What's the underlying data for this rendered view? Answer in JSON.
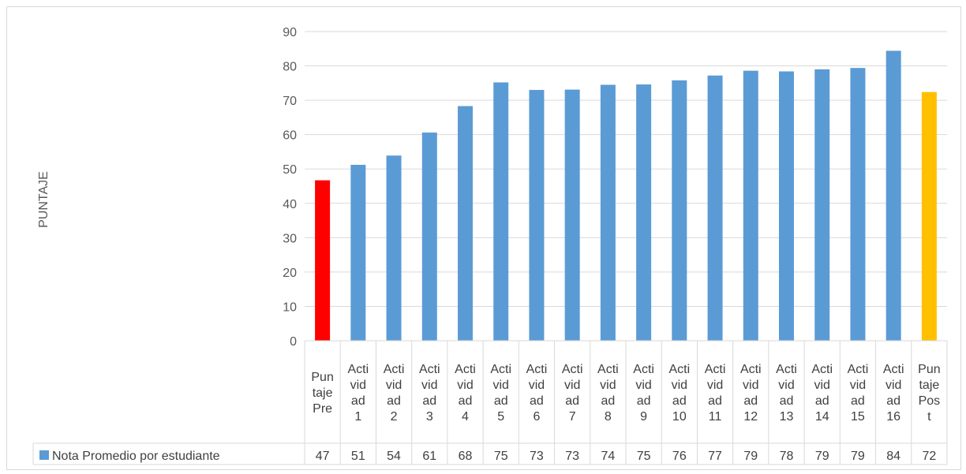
{
  "chart_data": {
    "type": "bar",
    "ylabel": "PUNTAJE",
    "ylim": [
      0,
      90
    ],
    "yticks": [
      0,
      10,
      20,
      30,
      40,
      50,
      60,
      70,
      80,
      90
    ],
    "categories": [
      [
        "Pun",
        "taje",
        "Pre"
      ],
      [
        "Acti",
        "vid",
        "ad",
        "1"
      ],
      [
        "Acti",
        "vid",
        "ad",
        "2"
      ],
      [
        "Acti",
        "vid",
        "ad",
        "3"
      ],
      [
        "Acti",
        "vid",
        "ad",
        "4"
      ],
      [
        "Acti",
        "vid",
        "ad",
        "5"
      ],
      [
        "Acti",
        "vid",
        "ad",
        "6"
      ],
      [
        "Acti",
        "vid",
        "ad",
        "7"
      ],
      [
        "Acti",
        "vid",
        "ad",
        "8"
      ],
      [
        "Acti",
        "vid",
        "ad",
        "9"
      ],
      [
        "Acti",
        "vid",
        "ad",
        "10"
      ],
      [
        "Acti",
        "vid",
        "ad",
        "11"
      ],
      [
        "Acti",
        "vid",
        "ad",
        "12"
      ],
      [
        "Acti",
        "vid",
        "ad",
        "13"
      ],
      [
        "Acti",
        "vid",
        "ad",
        "14"
      ],
      [
        "Acti",
        "vid",
        "ad",
        "15"
      ],
      [
        "Acti",
        "vid",
        "ad",
        "16"
      ],
      [
        "Pun",
        "taje",
        "Pos",
        "t"
      ]
    ],
    "series": [
      {
        "name": "Nota Promedio por estudiante",
        "color": "#5b9bd5",
        "values": [
          46.7,
          51.2,
          53.9,
          60.6,
          68.3,
          75.2,
          73.0,
          73.1,
          74.5,
          74.6,
          75.8,
          77.2,
          78.6,
          78.4,
          79.0,
          79.4,
          84.4,
          72.4
        ],
        "table_values": [
          "47",
          "51",
          "54",
          "61",
          "68",
          "75",
          "73",
          "73",
          "74",
          "75",
          "76",
          "77",
          "79",
          "78",
          "79",
          "79",
          "84",
          "72"
        ],
        "point_colors": [
          "#ff0000",
          "#5b9bd5",
          "#5b9bd5",
          "#5b9bd5",
          "#5b9bd5",
          "#5b9bd5",
          "#5b9bd5",
          "#5b9bd5",
          "#5b9bd5",
          "#5b9bd5",
          "#5b9bd5",
          "#5b9bd5",
          "#5b9bd5",
          "#5b9bd5",
          "#5b9bd5",
          "#5b9bd5",
          "#5b9bd5",
          "#ffc000"
        ]
      }
    ],
    "grid": true,
    "data_table": true
  }
}
